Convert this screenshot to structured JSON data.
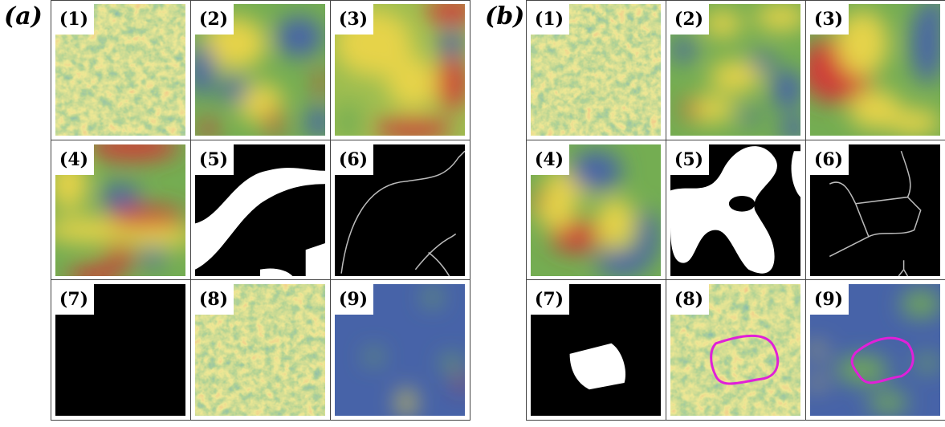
{
  "panels": [
    {
      "label": "(a)",
      "cells": [
        "(1)",
        "(2)",
        "(3)",
        "(4)",
        "(5)",
        "(6)",
        "(7)",
        "(8)",
        "(9)"
      ]
    },
    {
      "label": "(b)",
      "cells": [
        "(1)",
        "(2)",
        "(3)",
        "(4)",
        "(5)",
        "(6)",
        "(7)",
        "(8)",
        "(9)"
      ]
    }
  ]
}
